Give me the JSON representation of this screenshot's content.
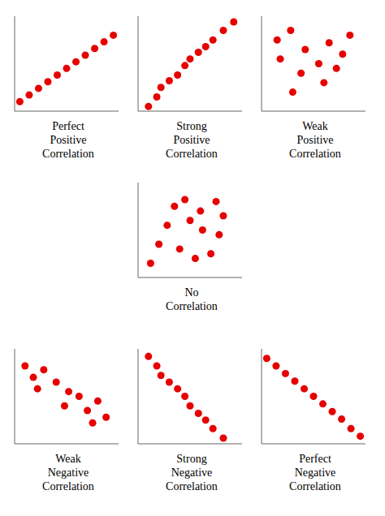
{
  "chart_data": [
    {
      "type": "scatter",
      "xlabel": "Perfect\nPositive\nCorrelation",
      "color": "#e60000",
      "tick_labels": false,
      "xlim": [
        0,
        1
      ],
      "ylim": [
        0,
        1
      ],
      "x": [
        0.05,
        0.14,
        0.23,
        0.32,
        0.41,
        0.5,
        0.59,
        0.68,
        0.77,
        0.86,
        0.95
      ],
      "y": [
        0.1,
        0.17,
        0.24,
        0.31,
        0.38,
        0.45,
        0.52,
        0.59,
        0.66,
        0.73,
        0.8
      ]
    },
    {
      "type": "scatter",
      "xlabel": "Strong\nPositive\nCorrelation",
      "color": "#e60000",
      "tick_labels": false,
      "xlim": [
        0,
        1
      ],
      "ylim": [
        0,
        1
      ],
      "x": [
        0.1,
        0.18,
        0.22,
        0.3,
        0.38,
        0.45,
        0.5,
        0.58,
        0.65,
        0.72,
        0.82,
        0.92
      ],
      "y": [
        0.05,
        0.15,
        0.25,
        0.32,
        0.38,
        0.48,
        0.55,
        0.62,
        0.68,
        0.75,
        0.85,
        0.94
      ]
    },
    {
      "type": "scatter",
      "xlabel": "Weak\nPositive\nCorrelation",
      "color": "#e60000",
      "tick_labels": false,
      "xlim": [
        0,
        1
      ],
      "ylim": [
        0,
        1
      ],
      "x": [
        0.15,
        0.28,
        0.18,
        0.42,
        0.55,
        0.38,
        0.65,
        0.78,
        0.85,
        0.6,
        0.3,
        0.72
      ],
      "y": [
        0.75,
        0.85,
        0.55,
        0.65,
        0.5,
        0.4,
        0.72,
        0.6,
        0.8,
        0.3,
        0.2,
        0.45
      ]
    },
    {
      "type": "scatter",
      "xlabel": "No\nCorrelation",
      "color": "#e60000",
      "tick_labels": false,
      "xlim": [
        0,
        1
      ],
      "ylim": [
        0,
        1
      ],
      "x": [
        0.12,
        0.28,
        0.45,
        0.6,
        0.78,
        0.2,
        0.5,
        0.7,
        0.35,
        0.62,
        0.82,
        0.4,
        0.55,
        0.75
      ],
      "y": [
        0.15,
        0.55,
        0.82,
        0.7,
        0.45,
        0.35,
        0.6,
        0.25,
        0.75,
        0.5,
        0.65,
        0.3,
        0.2,
        0.8
      ]
    },
    {
      "type": "scatter",
      "xlabel": "Weak\nNegative\nCorrelation",
      "color": "#e60000",
      "tick_labels": false,
      "xlim": [
        0,
        1
      ],
      "ylim": [
        0,
        1
      ],
      "x": [
        0.1,
        0.18,
        0.28,
        0.22,
        0.4,
        0.52,
        0.48,
        0.62,
        0.7,
        0.8,
        0.75,
        0.88
      ],
      "y": [
        0.82,
        0.7,
        0.78,
        0.58,
        0.65,
        0.55,
        0.4,
        0.5,
        0.35,
        0.45,
        0.22,
        0.28
      ]
    },
    {
      "type": "scatter",
      "xlabel": "Strong\nNegative\nCorrelation",
      "color": "#e60000",
      "tick_labels": false,
      "xlim": [
        0,
        1
      ],
      "ylim": [
        0,
        1
      ],
      "x": [
        0.1,
        0.18,
        0.22,
        0.3,
        0.38,
        0.45,
        0.5,
        0.58,
        0.65,
        0.72,
        0.82
      ],
      "y": [
        0.92,
        0.82,
        0.72,
        0.65,
        0.58,
        0.5,
        0.4,
        0.32,
        0.25,
        0.16,
        0.06
      ]
    },
    {
      "type": "scatter",
      "xlabel": "Perfect\nNegative\nCorrelation",
      "color": "#e60000",
      "tick_labels": false,
      "xlim": [
        0,
        1
      ],
      "ylim": [
        0,
        1
      ],
      "x": [
        0.05,
        0.14,
        0.23,
        0.32,
        0.41,
        0.5,
        0.59,
        0.68,
        0.77,
        0.86,
        0.95
      ],
      "y": [
        0.9,
        0.82,
        0.74,
        0.66,
        0.58,
        0.5,
        0.42,
        0.34,
        0.26,
        0.16,
        0.08
      ]
    }
  ]
}
